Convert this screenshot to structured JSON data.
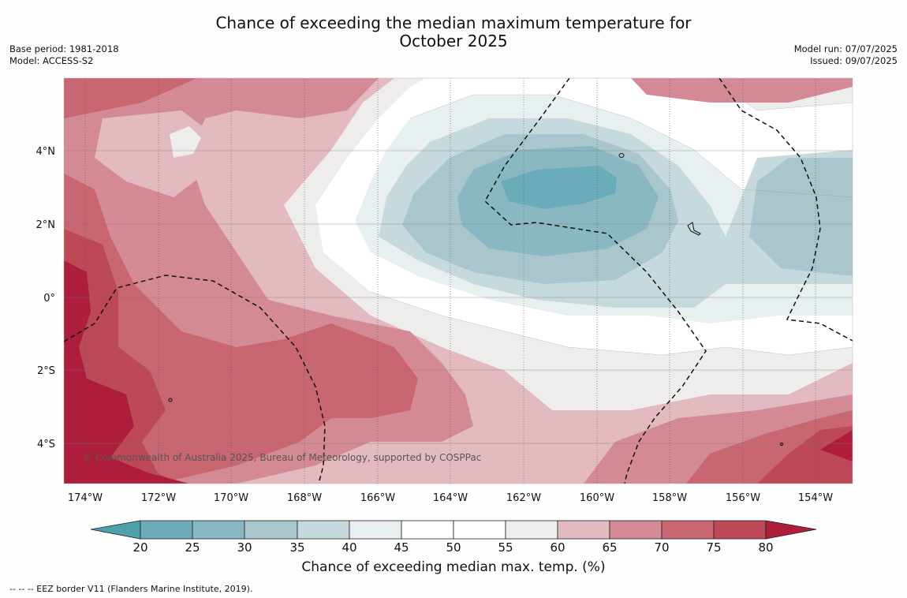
{
  "title_line1": "Chance of exceeding the median maximum temperature for",
  "title_line2": "October 2025",
  "meta_left": {
    "base_period": "Base period: 1981-2018",
    "model": "Model: ACCESS-S2"
  },
  "meta_right": {
    "model_run": "Model run: 07/07/2025",
    "issued": "Issued: 09/07/2025"
  },
  "map": {
    "lon_labels": [
      "174°W",
      "172°W",
      "170°W",
      "168°W",
      "166°W",
      "164°W",
      "162°W",
      "160°W",
      "158°W",
      "156°W",
      "154°W"
    ],
    "lat_labels": [
      "4°N",
      "2°N",
      "0°",
      "2°S",
      "4°S"
    ],
    "copyright": "© Commonwealth of Australia 2025, Bureau of Meteorology, supported by COSPPac"
  },
  "colorbar": {
    "label": "Chance of exceeding median max. temp. (%)",
    "ticks": [
      "20",
      "25",
      "30",
      "35",
      "40",
      "45",
      "50",
      "55",
      "60",
      "65",
      "70",
      "75",
      "80"
    ],
    "colors": {
      "lt20": "#4fa0ad",
      "b20_25": "#6aacb9",
      "b25_30": "#89b7c2",
      "b30_35": "#a8c6cc",
      "b35_40": "#c6d9dd",
      "b40_45": "#e8eff1",
      "b45_50": "#ffffff",
      "b50_55": "#ffffff",
      "b55_60": "#eeedec",
      "b60_65": "#e2bac0",
      "b65_70": "#d48a94",
      "b70_75": "#c86672",
      "b75_80": "#bc4858",
      "gt80": "#ae1e3c"
    }
  },
  "legend_note": "--  --  -- EEZ border V11 (Flanders Marine Institute, 2019)."
}
